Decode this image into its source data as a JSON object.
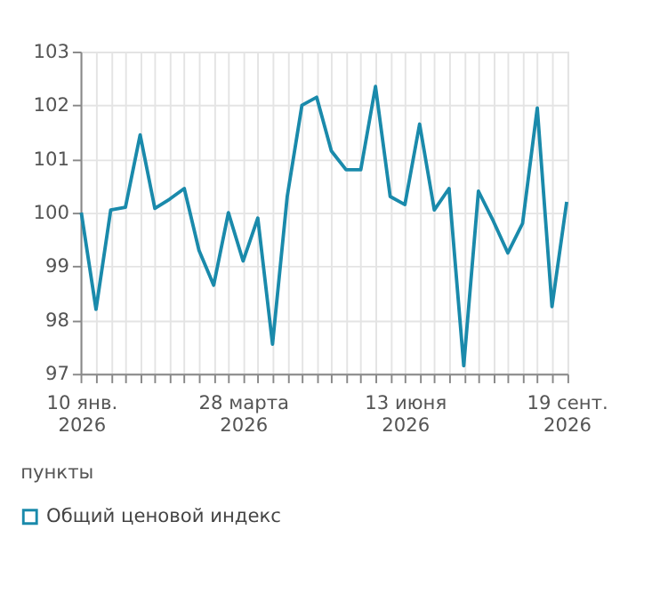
{
  "chart_data": {
    "type": "line",
    "categories": [
      "10 янв.\n2026",
      null,
      null,
      null,
      null,
      null,
      null,
      null,
      null,
      null,
      null,
      "28 марта\n2026",
      null,
      null,
      null,
      null,
      null,
      null,
      null,
      null,
      null,
      null,
      "13 июня\n2026",
      null,
      null,
      null,
      null,
      null,
      null,
      null,
      null,
      null,
      null,
      "19 сент.\n2026"
    ],
    "series": [
      {
        "name": "Общий ценовой индекс",
        "color": "#1a8aab",
        "values": [
          100.0,
          98.2,
          100.05,
          100.1,
          101.45,
          100.08,
          100.25,
          100.45,
          99.3,
          98.65,
          100.0,
          99.1,
          99.9,
          97.55,
          100.3,
          102.0,
          102.15,
          101.15,
          100.8,
          100.8,
          102.35,
          100.3,
          100.15,
          101.65,
          100.05,
          100.45,
          97.15,
          100.4,
          99.85,
          99.25,
          99.8,
          101.95,
          98.25,
          100.2
        ]
      }
    ],
    "ylim": [
      97,
      103
    ],
    "yticks": [
      97,
      98,
      99,
      100,
      101,
      102,
      103
    ],
    "grid": true,
    "legend": "bottom left",
    "marker": "none",
    "line_style": "solid",
    "annotations": [
      "пункты"
    ]
  }
}
